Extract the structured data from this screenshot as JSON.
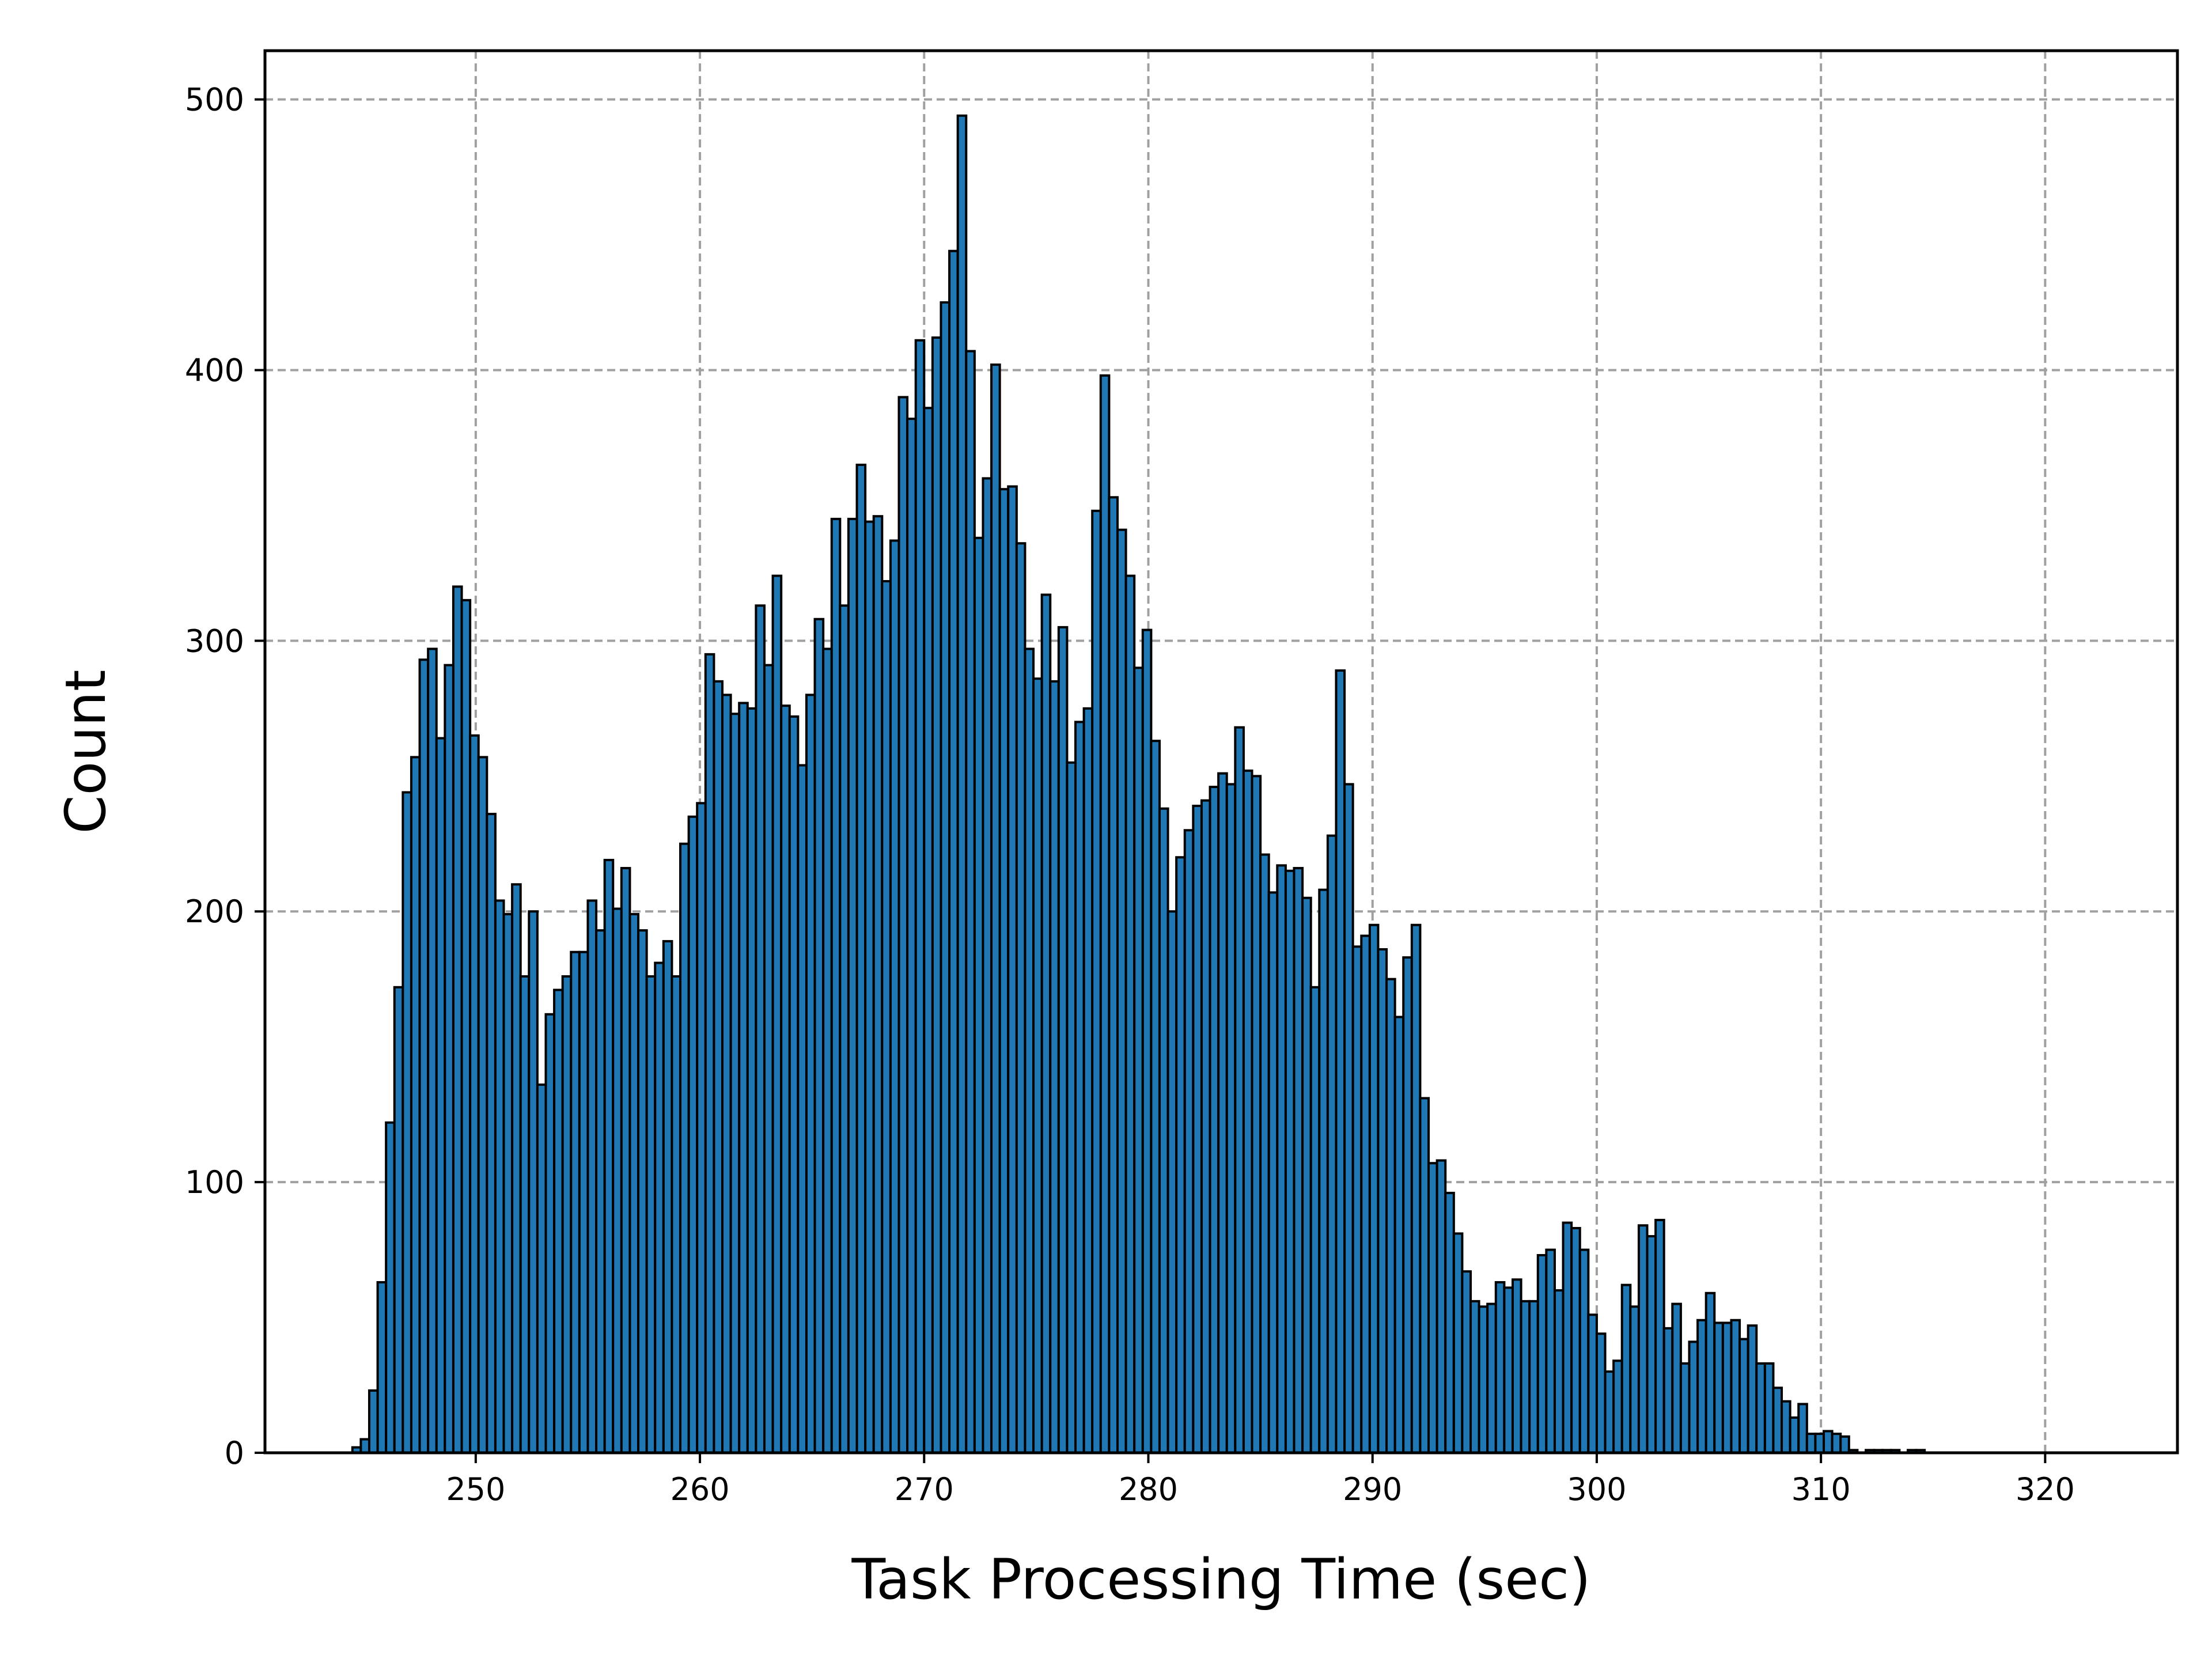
{
  "chart_data": {
    "type": "bar",
    "subtype": "histogram",
    "title": "",
    "xlabel": "Task Processing Time (sec)",
    "ylabel": "Count",
    "xlim": [
      240.6,
      325.9
    ],
    "ylim": [
      0,
      518
    ],
    "xticks": [
      250,
      260,
      270,
      280,
      290,
      300,
      310,
      320
    ],
    "yticks": [
      0,
      100,
      200,
      300,
      400,
      500
    ],
    "grid": true,
    "grid_style": "dashed",
    "bin_start": 244.5,
    "bin_width": 0.375,
    "colors": {
      "bar_fill": "#1f77b4",
      "bar_edge": "#000000",
      "grid": "#a0a0a0",
      "axes": "#000000"
    },
    "values": [
      2,
      5,
      23,
      63,
      122,
      172,
      244,
      257,
      293,
      297,
      264,
      291,
      320,
      315,
      265,
      257,
      236,
      204,
      199,
      210,
      176,
      200,
      136,
      162,
      171,
      176,
      185,
      185,
      204,
      193,
      219,
      201,
      216,
      199,
      193,
      176,
      181,
      189,
      176,
      225,
      235,
      240,
      295,
      285,
      280,
      273,
      277,
      275,
      313,
      291,
      324,
      276,
      272,
      254,
      280,
      308,
      297,
      345,
      313,
      345,
      365,
      344,
      346,
      322,
      337,
      390,
      382,
      411,
      386,
      412,
      425,
      444,
      494,
      407,
      338,
      360,
      402,
      356,
      357,
      336,
      297,
      286,
      317,
      285,
      305,
      255,
      270,
      275,
      348,
      398,
      353,
      341,
      324,
      290,
      304,
      263,
      238,
      200,
      220,
      230,
      239,
      241,
      246,
      251,
      247,
      268,
      252,
      250,
      221,
      207,
      217,
      215,
      216,
      205,
      172,
      208,
      228,
      289,
      247,
      187,
      191,
      195,
      186,
      175,
      161,
      183,
      195,
      131,
      107,
      108,
      96,
      81,
      67,
      56,
      54,
      55,
      63,
      61,
      64,
      56,
      56,
      73,
      75,
      60,
      85,
      83,
      75,
      51,
      44,
      30,
      34,
      62,
      54,
      84,
      80,
      86,
      46,
      55,
      33,
      41,
      49,
      59,
      48,
      48,
      49,
      42,
      47,
      33,
      33,
      24,
      19,
      13,
      18,
      7,
      7,
      8,
      7,
      6,
      1,
      0,
      1,
      1,
      1,
      1,
      0,
      1,
      1
    ]
  }
}
